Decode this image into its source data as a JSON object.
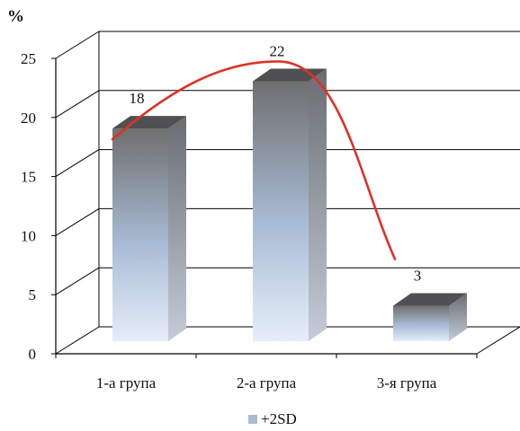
{
  "chart_data": {
    "type": "bar",
    "ylabel": "%",
    "ylim": [
      0,
      25
    ],
    "yticks": [
      "0",
      "5",
      "10",
      "15",
      "20",
      "25"
    ],
    "categories": [
      "1-а група",
      "2-а група",
      "3-я група"
    ],
    "series": [
      {
        "name": "+2SD",
        "values": [
          18,
          22,
          3
        ]
      }
    ],
    "data_labels": [
      "18",
      "22",
      "3"
    ],
    "trend_line": true,
    "grid": true,
    "legend_position": "bottom",
    "colors": {
      "bar_light": "#e6eef8",
      "bar_mid": "#a9bcd6",
      "bar_dark": "#6f6f6f",
      "bar_side": "#8a8d94",
      "bar_top": "#4f5052",
      "trend": "#e03024",
      "grid": "#000000"
    }
  }
}
